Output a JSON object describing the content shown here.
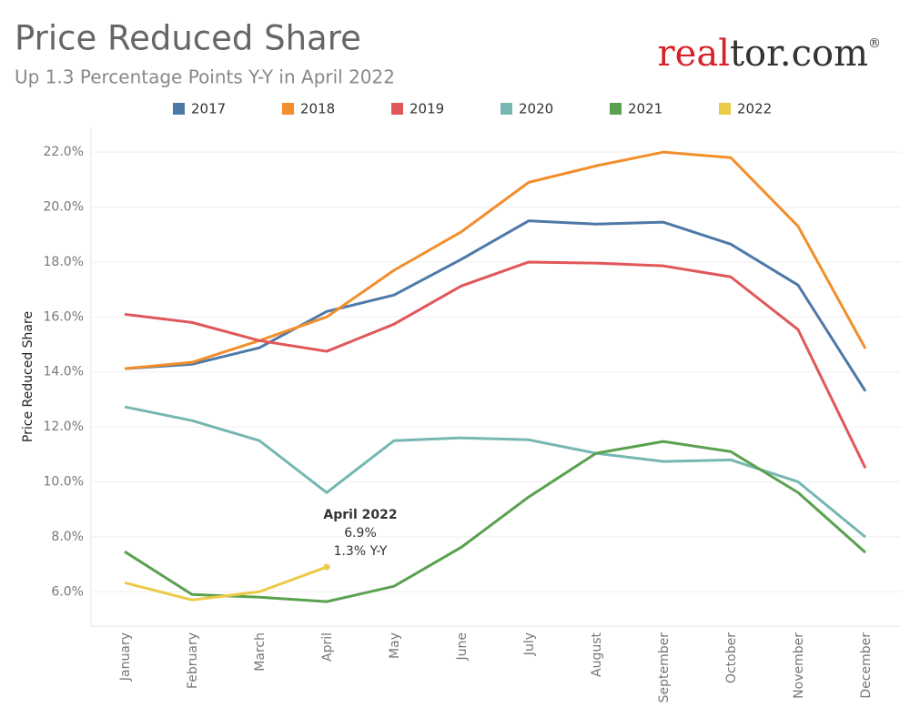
{
  "chart_data": {
    "type": "line",
    "title": "Price Reduced Share",
    "subtitle": "Up 1.3 Percentage Points Y-Y in April 2022",
    "logo": [
      "real",
      "tor.com",
      "®"
    ],
    "y_label": "Price Reduced Share",
    "categories": [
      "January",
      "February",
      "March",
      "April",
      "May",
      "June",
      "July",
      "August",
      "September",
      "October",
      "November",
      "December"
    ],
    "series": [
      {
        "name": "2017",
        "color": "#4e79a7",
        "values": [
          14.12,
          14.28,
          14.88,
          16.2,
          16.8,
          18.1,
          19.5,
          19.38,
          19.45,
          18.65,
          17.16,
          13.3
        ]
      },
      {
        "name": "2018",
        "color": "#f28e2b",
        "values": [
          14.12,
          14.35,
          15.14,
          16.0,
          17.7,
          19.1,
          20.9,
          21.5,
          22.0,
          21.8,
          19.3,
          14.85
        ]
      },
      {
        "name": "2019",
        "color": "#e15759",
        "values": [
          16.1,
          15.8,
          15.14,
          14.75,
          15.74,
          17.13,
          18.0,
          17.96,
          17.86,
          17.46,
          15.54,
          10.5
        ]
      },
      {
        "name": "2020",
        "color": "#76b7b2",
        "values": [
          12.73,
          12.23,
          11.5,
          9.61,
          11.5,
          11.6,
          11.53,
          11.04,
          10.74,
          10.8,
          10.0,
          7.99
        ]
      },
      {
        "name": "2021",
        "color": "#59a14f",
        "values": [
          7.46,
          5.9,
          5.8,
          5.64,
          6.2,
          7.62,
          9.45,
          11.04,
          11.47,
          11.1,
          9.61,
          7.43
        ]
      },
      {
        "name": "2022",
        "color": "#edc948",
        "values": [
          6.33,
          5.7,
          6.0,
          6.9,
          null,
          null,
          null,
          null,
          null,
          null,
          null,
          null
        ]
      }
    ],
    "annotation": {
      "title": "April 2022",
      "value": "6.9%",
      "change": "1.3% Y-Y"
    },
    "ylim": [
      4.75,
      22.9
    ],
    "yticks": [
      {
        "value": 6,
        "label": "6.0%"
      },
      {
        "value": 8,
        "label": "8.0%"
      },
      {
        "value": 10,
        "label": "10.0%"
      },
      {
        "value": 12,
        "label": "12.0%"
      },
      {
        "value": 14,
        "label": "14.0%"
      },
      {
        "value": 16,
        "label": "16.0%"
      },
      {
        "value": 18,
        "label": "18.0%"
      },
      {
        "value": 20,
        "label": "20.0%"
      },
      {
        "value": 22,
        "label": "22.0%"
      }
    ],
    "grid": true
  }
}
